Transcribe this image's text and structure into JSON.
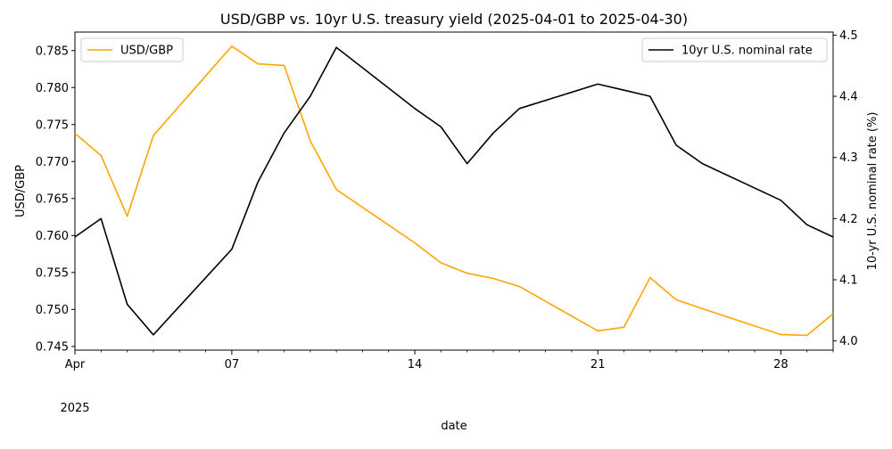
{
  "chart_data": {
    "type": "line",
    "title": "USD/GBP vs. 10yr U.S. treasury yield (2025-04-01 to 2025-04-30)",
    "xlabel": "date",
    "ylabel_left": "USD/GBP",
    "ylabel_right": "10-yr U.S. nominal rate (%)",
    "x_tick_labels": [
      {
        "date": "2025-04-01",
        "label": "Apr",
        "sublabel": "2025"
      },
      {
        "date": "2025-04-07",
        "label": "07",
        "sublabel": ""
      },
      {
        "date": "2025-04-14",
        "label": "14",
        "sublabel": ""
      },
      {
        "date": "2025-04-21",
        "label": "21",
        "sublabel": ""
      },
      {
        "date": "2025-04-28",
        "label": "28",
        "sublabel": ""
      }
    ],
    "xlim": [
      "2025-04-01",
      "2025-04-30"
    ],
    "left_axis": {
      "ylim": [
        0.7445,
        0.7875
      ],
      "ticks": [
        0.745,
        0.75,
        0.755,
        0.76,
        0.765,
        0.77,
        0.775,
        0.78,
        0.785
      ],
      "tick_labels": [
        "0.745",
        "0.750",
        "0.755",
        "0.760",
        "0.765",
        "0.770",
        "0.775",
        "0.780",
        "0.785"
      ]
    },
    "right_axis": {
      "ylim": [
        3.985,
        4.505
      ],
      "ticks": [
        4.0,
        4.1,
        4.2,
        4.3,
        4.4,
        4.5
      ],
      "tick_labels": [
        "4.0",
        "4.1",
        "4.2",
        "4.3",
        "4.4",
        "4.5"
      ]
    },
    "series": [
      {
        "name": "USD/GBP",
        "axis": "left",
        "color": "#ffa500",
        "legend_loc": "upper left",
        "points": [
          {
            "x": "2025-04-01",
            "y": 0.7738
          },
          {
            "x": "2025-04-02",
            "y": 0.7708
          },
          {
            "x": "2025-04-03",
            "y": 0.7626
          },
          {
            "x": "2025-04-04",
            "y": 0.7735
          },
          {
            "x": "2025-04-07",
            "y": 0.7856
          },
          {
            "x": "2025-04-08",
            "y": 0.7832
          },
          {
            "x": "2025-04-09",
            "y": 0.783
          },
          {
            "x": "2025-04-10",
            "y": 0.7728
          },
          {
            "x": "2025-04-11",
            "y": 0.7662
          },
          {
            "x": "2025-04-14",
            "y": 0.759
          },
          {
            "x": "2025-04-15",
            "y": 0.7563
          },
          {
            "x": "2025-04-16",
            "y": 0.7549
          },
          {
            "x": "2025-04-17",
            "y": 0.7542
          },
          {
            "x": "2025-04-18",
            "y": 0.7531
          },
          {
            "x": "2025-04-21",
            "y": 0.7471
          },
          {
            "x": "2025-04-22",
            "y": 0.7476
          },
          {
            "x": "2025-04-23",
            "y": 0.7543
          },
          {
            "x": "2025-04-24",
            "y": 0.7513
          },
          {
            "x": "2025-04-25",
            "y": 0.7501
          },
          {
            "x": "2025-04-28",
            "y": 0.7466
          },
          {
            "x": "2025-04-29",
            "y": 0.7465
          },
          {
            "x": "2025-04-30",
            "y": 0.7494
          }
        ]
      },
      {
        "name": "10yr U.S. nominal rate",
        "axis": "right",
        "color": "#000000",
        "legend_loc": "upper right",
        "points": [
          {
            "x": "2025-04-01",
            "y": 4.17
          },
          {
            "x": "2025-04-02",
            "y": 4.2
          },
          {
            "x": "2025-04-03",
            "y": 4.06
          },
          {
            "x": "2025-04-04",
            "y": 4.01
          },
          {
            "x": "2025-04-07",
            "y": 4.15
          },
          {
            "x": "2025-04-08",
            "y": 4.26
          },
          {
            "x": "2025-04-09",
            "y": 4.34
          },
          {
            "x": "2025-04-10",
            "y": 4.4
          },
          {
            "x": "2025-04-11",
            "y": 4.48
          },
          {
            "x": "2025-04-14",
            "y": 4.38
          },
          {
            "x": "2025-04-15",
            "y": 4.35
          },
          {
            "x": "2025-04-16",
            "y": 4.29
          },
          {
            "x": "2025-04-17",
            "y": 4.34
          },
          {
            "x": "2025-04-18",
            "y": 4.38
          },
          {
            "x": "2025-04-21",
            "y": 4.42
          },
          {
            "x": "2025-04-22",
            "y": 4.41
          },
          {
            "x": "2025-04-23",
            "y": 4.4
          },
          {
            "x": "2025-04-24",
            "y": 4.32
          },
          {
            "x": "2025-04-25",
            "y": 4.29
          },
          {
            "x": "2025-04-28",
            "y": 4.23
          },
          {
            "x": "2025-04-29",
            "y": 4.19
          },
          {
            "x": "2025-04-30",
            "y": 4.17
          }
        ]
      }
    ],
    "grid": false
  }
}
